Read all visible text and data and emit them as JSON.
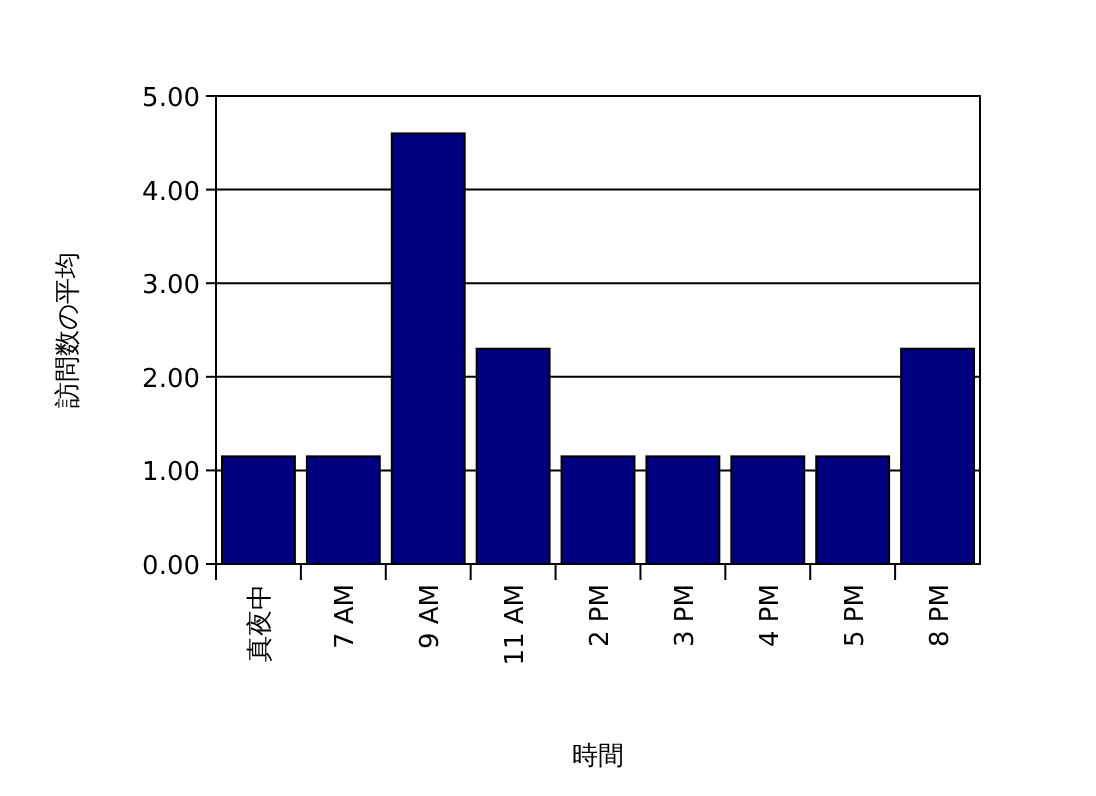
{
  "chart_data": {
    "type": "bar",
    "xlabel": "時間",
    "ylabel": "訪問数の平均",
    "categories": [
      "真夜中",
      "7 AM",
      "9 AM",
      "11 AM",
      "2 PM",
      "3 PM",
      "4 PM",
      "5 PM",
      "8 PM"
    ],
    "values": [
      1.15,
      1.15,
      4.6,
      2.3,
      1.15,
      1.15,
      1.15,
      1.15,
      2.3
    ],
    "color": "#000080",
    "ylim": [
      0,
      5
    ],
    "yticks": [
      {
        "value": 0,
        "label": "0.00"
      },
      {
        "value": 1,
        "label": "1.00"
      },
      {
        "value": 2,
        "label": "2.00"
      },
      {
        "value": 3,
        "label": "3.00"
      },
      {
        "value": 4,
        "label": "4.00"
      },
      {
        "value": 5,
        "label": "5.00"
      }
    ],
    "grid": "y"
  }
}
